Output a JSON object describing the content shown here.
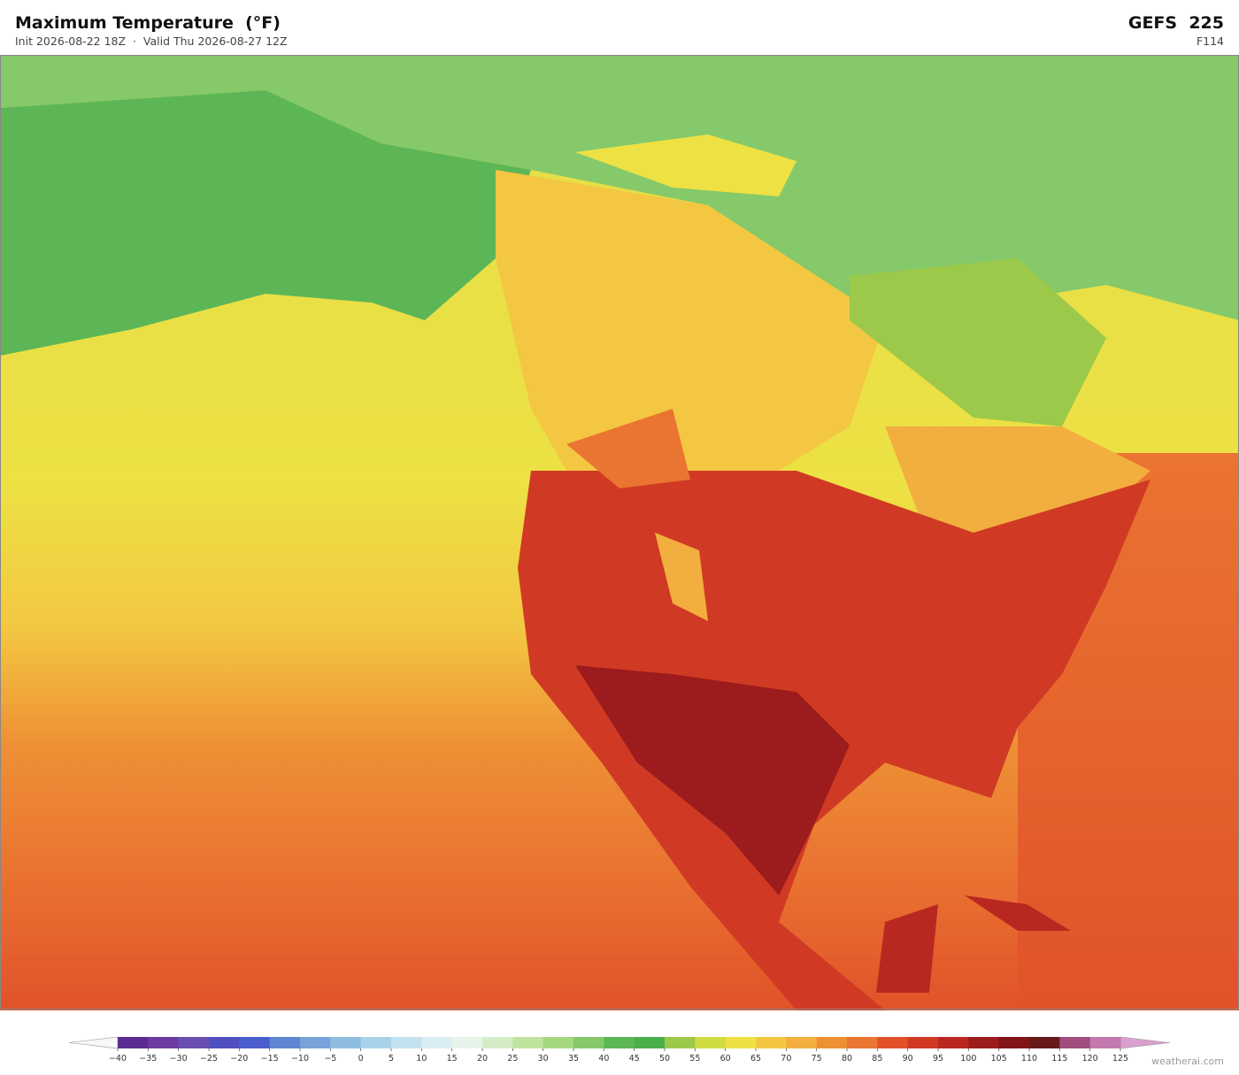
{
  "header": {
    "title": "Maximum Temperature  (°F)",
    "subtitle": "Init 2026-08-22 18Z  ·  Valid Thu 2026-08-27 12Z",
    "model": "GEFS  225",
    "forecast_hour": "F114"
  },
  "colorbar": {
    "ticks": [
      {
        "value": -40,
        "label": "−40"
      },
      {
        "value": -35,
        "label": "−35"
      },
      {
        "value": -30,
        "label": "−30"
      },
      {
        "value": -25,
        "label": "−25"
      },
      {
        "value": -20,
        "label": "−20"
      },
      {
        "value": -15,
        "label": "−15"
      },
      {
        "value": -10,
        "label": "−10"
      },
      {
        "value": -5,
        "label": "−5"
      },
      0,
      5,
      10,
      15,
      20,
      25,
      30,
      35,
      40,
      45,
      50,
      55,
      60,
      65,
      70,
      75,
      80,
      85,
      90,
      95,
      100,
      105,
      110,
      115,
      120,
      125
    ],
    "colors": [
      "#5a2d91",
      "#6c3aa0",
      "#6a4fb0",
      "#4f4fc0",
      "#4a5fcc",
      "#5f86d0",
      "#78a3d8",
      "#8fbde0",
      "#a8d2e8",
      "#c3e2ef",
      "#d9eef3",
      "#e6f4ea",
      "#d4edc8",
      "#c0e49e",
      "#a5d880",
      "#85c96a",
      "#5db656",
      "#4aae4b",
      "#9cc94a",
      "#d1dc42",
      "#ede144",
      "#f3c742",
      "#f2ae3e",
      "#ee9135",
      "#ea7431",
      "#e1522a",
      "#d03a24",
      "#b82820",
      "#9c1b1c",
      "#811418",
      "#681818",
      "#a04e7e",
      "#c27aae"
    ],
    "under_color": "#f7f7f7",
    "over_color": "#d9a0cf"
  },
  "watermark": "weatherai.com"
}
